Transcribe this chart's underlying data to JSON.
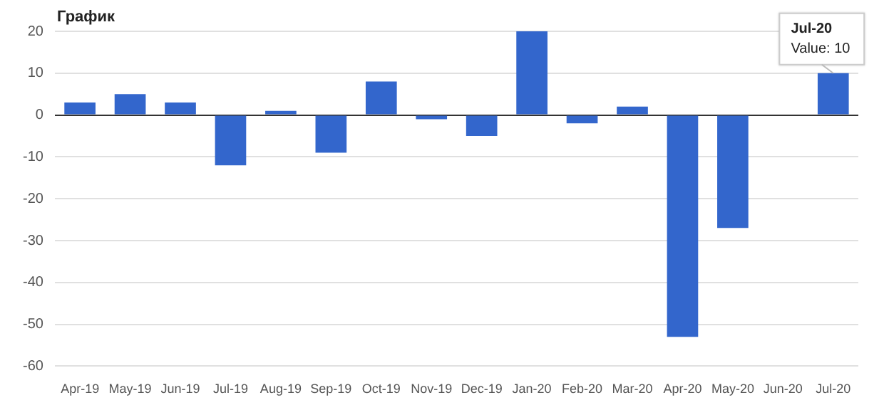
{
  "chart_data": {
    "type": "bar",
    "title": "График",
    "categories": [
      "Apr-19",
      "May-19",
      "Jun-19",
      "Jul-19",
      "Aug-19",
      "Sep-19",
      "Oct-19",
      "Nov-19",
      "Dec-19",
      "Jan-20",
      "Feb-20",
      "Mar-20",
      "Apr-20",
      "May-20",
      "Jun-20",
      "Jul-20"
    ],
    "values": [
      3,
      5,
      3,
      -12,
      1,
      -9,
      8,
      -1,
      -5,
      20,
      -2,
      2,
      -53,
      -27,
      0,
      10
    ],
    "color": "#3366cc",
    "ylim": [
      -60,
      20
    ],
    "yticks": [
      -60,
      -50,
      -40,
      -30,
      -20,
      -10,
      0,
      10,
      20
    ],
    "grid": "y",
    "legend": false,
    "annotations": [
      {
        "text": "Jul-20",
        "x": "Jul-20",
        "y": 10
      },
      {
        "text": "Value: 10",
        "x": "Jul-20",
        "y": 10
      }
    ]
  }
}
